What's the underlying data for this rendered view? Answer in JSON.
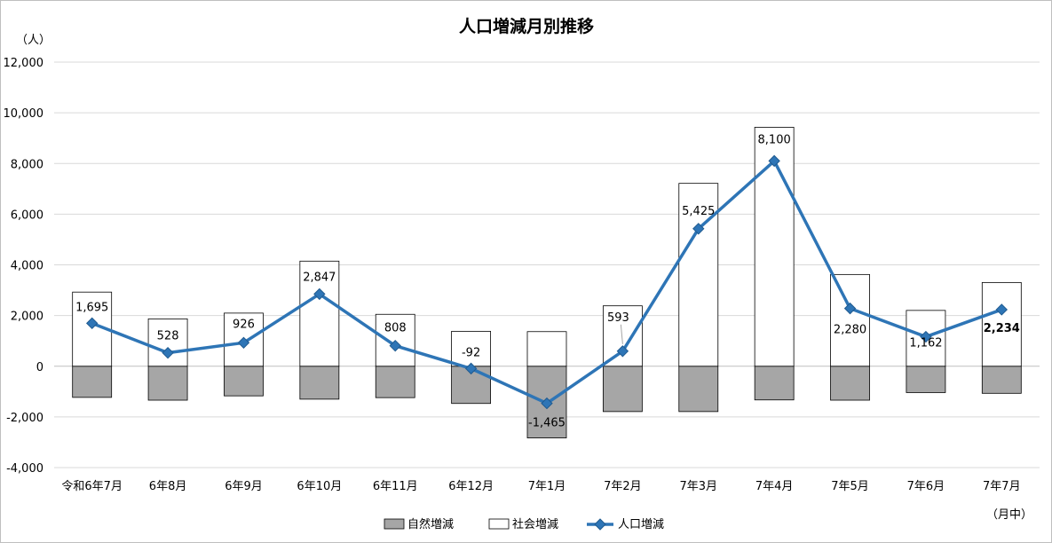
{
  "chart_data": {
    "type": "bar",
    "title": "人口増減月別推移",
    "y_unit": "（人）",
    "x_unit": "（月中）",
    "ylim": [
      -4000,
      12000
    ],
    "ytick_step": 2000,
    "y_tick_labels": [
      "-4,000",
      "-2,000",
      "0",
      "2,000",
      "4,000",
      "6,000",
      "8,000",
      "10,000",
      "12,000"
    ],
    "grid": true,
    "legend_position": "bottom",
    "categories": [
      "令和6年7月",
      "6年8月",
      "6年9月",
      "6年10月",
      "6年11月",
      "6年12月",
      "7年1月",
      "7年2月",
      "7年3月",
      "7年4月",
      "7年5月",
      "7年6月",
      "7年7月"
    ],
    "series": [
      {
        "name": "自然増減",
        "type": "bar",
        "color": "#a6a6a6",
        "values": [
          -1230,
          -1340,
          -1170,
          -1300,
          -1240,
          -1470,
          -2830,
          -1790,
          -1790,
          -1330,
          -1340,
          -1040,
          -1070
        ]
      },
      {
        "name": "社会増減",
        "type": "bar",
        "color": "#ffffff",
        "values": [
          2925,
          1868,
          2096,
          4147,
          2048,
          1378,
          1365,
          2383,
          7215,
          9430,
          3620,
          2202,
          3304
        ]
      },
      {
        "name": "人口増減",
        "type": "line",
        "color": "#2e75b6",
        "values": [
          1695,
          528,
          926,
          2847,
          808,
          -92,
          -1465,
          593,
          5425,
          8100,
          2280,
          1162,
          2234
        ],
        "labels": [
          "1,695",
          "528",
          "926",
          "2,847",
          "808",
          "-92",
          "-1,465",
          "593",
          "5,425",
          "8,100",
          "2,280",
          "1,162",
          "2,234"
        ]
      }
    ]
  }
}
